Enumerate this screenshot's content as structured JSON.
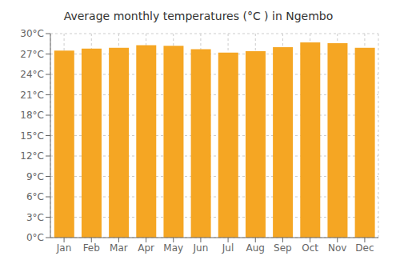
{
  "chart_data": {
    "type": "bar",
    "title": "Average monthly temperatures (°C ) in Ngembo",
    "categories": [
      "Jan",
      "Feb",
      "Mar",
      "Apr",
      "May",
      "Jun",
      "Jul",
      "Aug",
      "Sep",
      "Oct",
      "Nov",
      "Dec"
    ],
    "values": [
      27.5,
      27.8,
      27.9,
      28.3,
      28.2,
      27.7,
      27.2,
      27.4,
      28.0,
      28.7,
      28.6,
      27.9
    ],
    "color": "#F5A623",
    "ylim": [
      0,
      30
    ],
    "yticks": [
      {
        "value": 0,
        "label": "0°C"
      },
      {
        "value": 3,
        "label": "3°C"
      },
      {
        "value": 6,
        "label": "6°C"
      },
      {
        "value": 9,
        "label": "9°C"
      },
      {
        "value": 12,
        "label": "12°C"
      },
      {
        "value": 15,
        "label": "15°C"
      },
      {
        "value": 18,
        "label": "18°C"
      },
      {
        "value": 21,
        "label": "21°C"
      },
      {
        "value": 24,
        "label": "24°C"
      },
      {
        "value": 27,
        "label": "27°C"
      },
      {
        "value": 30,
        "label": "30°C"
      }
    ],
    "grid": true
  }
}
